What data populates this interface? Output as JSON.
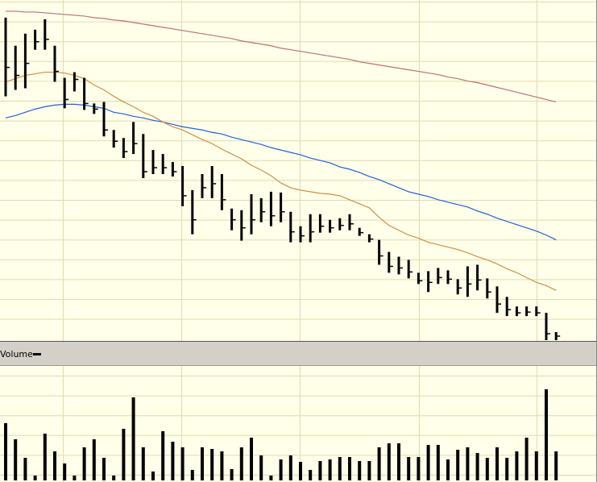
{
  "chart_data": [
    {
      "type": "ohlc",
      "ylim": [
        0,
        422
      ],
      "bar_color": "#000000",
      "high": [
        402,
        367,
        382,
        387,
        400,
        367,
        327,
        334,
        327,
        295,
        297,
        262,
        252,
        272,
        257,
        237,
        232,
        222,
        217,
        187,
        207,
        217,
        207,
        164,
        162,
        182,
        177,
        185,
        184,
        160,
        142,
        157,
        157,
        150,
        152,
        157,
        140,
        132,
        125,
        110,
        104,
        100,
        84,
        86,
        90,
        87,
        76,
        92,
        94,
        77,
        67,
        54,
        42,
        42,
        42,
        34,
        10
      ],
      "low": [
        304,
        312,
        314,
        362,
        362,
        322,
        289,
        310,
        287,
        282,
        254,
        240,
        227,
        232,
        202,
        207,
        207,
        204,
        167,
        132,
        177,
        177,
        162,
        137,
        124,
        132,
        147,
        142,
        147,
        122,
        122,
        122,
        134,
        134,
        137,
        137,
        130,
        122,
        94,
        84,
        82,
        77,
        70,
        60,
        70,
        70,
        57,
        54,
        62,
        52,
        34,
        30,
        30,
        30,
        30,
        0,
        0
      ],
      "close": [
        340,
        330,
        345,
        372,
        375,
        335,
        300,
        325,
        295,
        288,
        262,
        248,
        235,
        245,
        210,
        215,
        215,
        210,
        180,
        150,
        190,
        195,
        175,
        150,
        140,
        150,
        160,
        155,
        160,
        135,
        130,
        135,
        142,
        140,
        143,
        145,
        134,
        126,
        105,
        92,
        90,
        85,
        74,
        72,
        78,
        76,
        65,
        70,
        75,
        60,
        45,
        38,
        34,
        35,
        34,
        8,
        5
      ],
      "lines": [
        {
          "color": "#c07070",
          "values": [
            410,
            410,
            409,
            409,
            408,
            407,
            406,
            405,
            404,
            402,
            401,
            399,
            398,
            396,
            394,
            392,
            390,
            388,
            386,
            384,
            382,
            380,
            378,
            376,
            373,
            371,
            369,
            367,
            364,
            362,
            360,
            358,
            356,
            354,
            352,
            350,
            347,
            345,
            343,
            341,
            339,
            337,
            335,
            333,
            331,
            328,
            326,
            323,
            321,
            318,
            315,
            312,
            309,
            306,
            303,
            300,
            297
          ]
        },
        {
          "color": "#2060e0",
          "values": [
            277,
            280,
            284,
            288,
            291,
            293,
            294,
            294,
            293,
            291,
            289,
            284,
            282,
            279,
            277,
            274,
            272,
            269,
            266,
            264,
            262,
            259,
            257,
            253,
            250,
            247,
            244,
            240,
            237,
            234,
            231,
            227,
            224,
            221,
            216,
            213,
            209,
            204,
            200,
            195,
            190,
            185,
            182,
            179,
            175,
            172,
            169,
            166,
            161,
            157,
            152,
            148,
            144,
            140,
            136,
            131,
            125
          ]
        },
        {
          "color": "#d09040",
          "values": [
            322,
            326,
            330,
            332,
            334,
            334,
            333,
            330,
            326,
            318,
            312,
            304,
            297,
            291,
            284,
            279,
            272,
            266,
            262,
            256,
            250,
            245,
            238,
            232,
            226,
            218,
            212,
            205,
            196,
            190,
            187,
            185,
            183,
            182,
            180,
            175,
            170,
            165,
            153,
            143,
            137,
            131,
            127,
            122,
            119,
            116,
            113,
            109,
            104,
            100,
            95,
            89,
            84,
            78,
            72,
            68,
            62
          ]
        }
      ]
    },
    {
      "type": "bar",
      "title": "Volume",
      "color": "#000000",
      "ylim": [
        0,
        143
      ],
      "values": [
        71,
        51,
        28,
        6,
        58,
        36,
        21,
        6,
        41,
        51,
        28,
        6,
        64,
        103,
        41,
        11,
        61,
        48,
        41,
        13,
        41,
        39,
        36,
        14,
        41,
        53,
        31,
        6,
        26,
        31,
        23,
        13,
        24,
        26,
        29,
        29,
        24,
        24,
        41,
        46,
        46,
        29,
        29,
        44,
        44,
        26,
        38,
        41,
        34,
        28,
        41,
        28,
        36,
        53,
        36,
        113,
        36
      ]
    }
  ]
}
